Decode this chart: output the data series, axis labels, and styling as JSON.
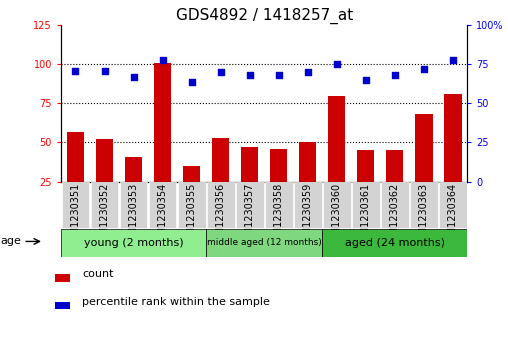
{
  "title": "GDS4892 / 1418257_at",
  "samples": [
    "GSM1230351",
    "GSM1230352",
    "GSM1230353",
    "GSM1230354",
    "GSM1230355",
    "GSM1230356",
    "GSM1230357",
    "GSM1230358",
    "GSM1230359",
    "GSM1230360",
    "GSM1230361",
    "GSM1230362",
    "GSM1230363",
    "GSM1230364"
  ],
  "counts": [
    57,
    52,
    41,
    101,
    35,
    53,
    47,
    46,
    50,
    80,
    45,
    45,
    68,
    81
  ],
  "percentiles": [
    71,
    71,
    67,
    78,
    64,
    70,
    68,
    68,
    70,
    75,
    65,
    68,
    72,
    78
  ],
  "groups": [
    {
      "label": "young (2 months)",
      "start": 0,
      "end": 5,
      "color": "#90EE90"
    },
    {
      "label": "middle aged (12 months)",
      "start": 5,
      "end": 9,
      "color": "#7FD87F"
    },
    {
      "label": "aged (24 months)",
      "start": 9,
      "end": 14,
      "color": "#3CB83C"
    }
  ],
  "bar_color": "#CC0000",
  "dot_color": "#0000CC",
  "left_ylim": [
    25,
    125
  ],
  "left_yticks": [
    25,
    50,
    75,
    100,
    125
  ],
  "right_ylim": [
    0,
    100
  ],
  "right_yticks": [
    0,
    25,
    50,
    75,
    100
  ],
  "grid_lines": [
    50,
    75,
    100
  ],
  "title_fontsize": 11,
  "tick_fontsize": 7,
  "label_fontsize": 8,
  "legend_items": [
    "count",
    "percentile rank within the sample"
  ],
  "age_label": "age",
  "sample_box_color": "#D3D3D3",
  "background_color": "#FFFFFF"
}
